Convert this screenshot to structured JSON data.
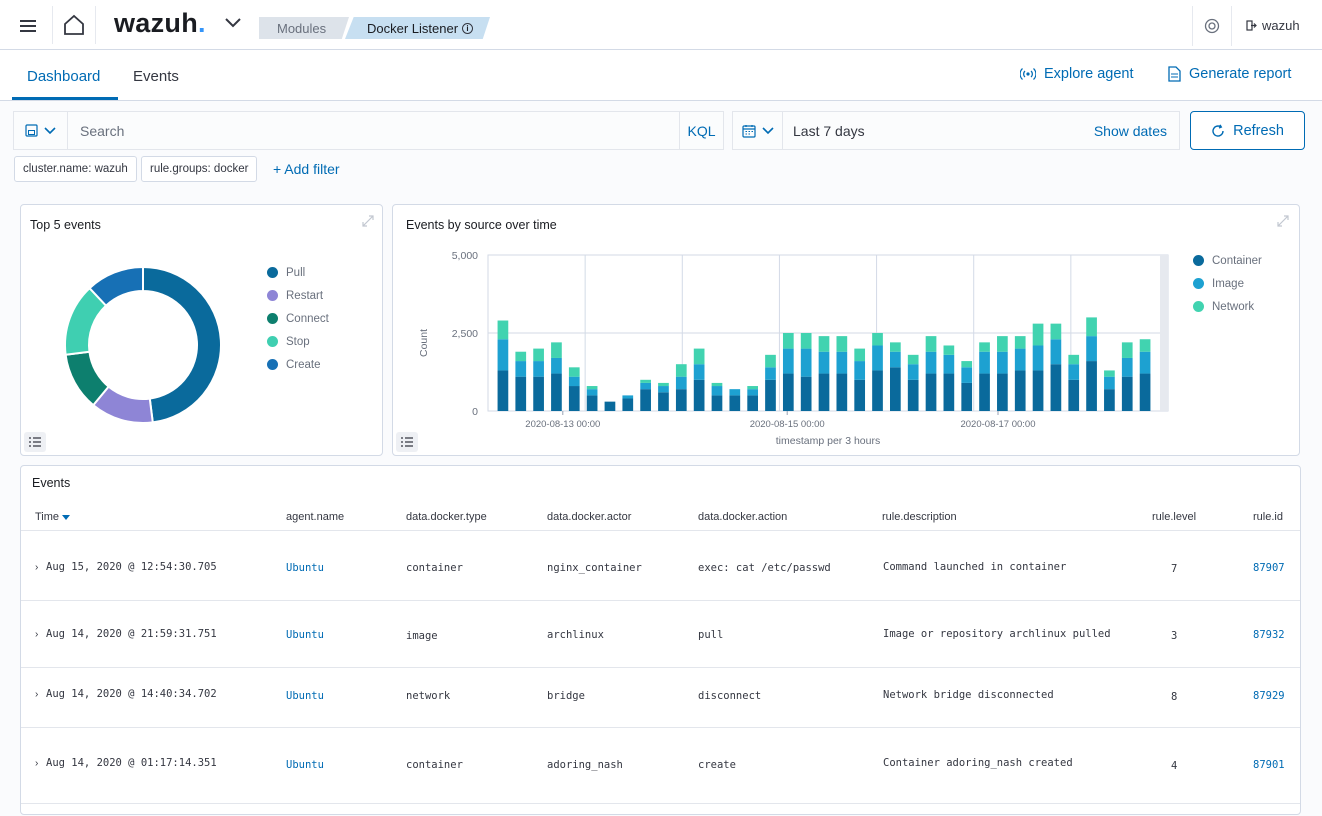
{
  "header": {
    "logo_text": "wazuh",
    "logo_dot": ".",
    "breadcrumb": [
      "Modules",
      "Docker Listener"
    ],
    "user": "wazuh",
    "icons": [
      "menu-icon",
      "home-icon",
      "chevron-down-icon",
      "info-icon",
      "help-icon",
      "logout-icon"
    ]
  },
  "tabs": [
    {
      "label": "Dashboard",
      "active": true
    },
    {
      "label": "Events",
      "active": false
    }
  ],
  "actions": {
    "explore_agent": "Explore agent",
    "generate_report": "Generate report"
  },
  "search": {
    "placeholder": "Search",
    "language": "KQL",
    "date_range": "Last 7 days",
    "show_dates": "Show dates",
    "refresh": "Refresh"
  },
  "filters": [
    "cluster.name: wazuh",
    "rule.groups: docker"
  ],
  "add_filter": "+ Add filter",
  "top5": {
    "title": "Top 5 events",
    "legend": [
      "Pull",
      "Restart",
      "Connect",
      "Stop",
      "Create"
    ],
    "colors": [
      "#0a6a9c",
      "#8e85d6",
      "#0d7f6e",
      "#3fcfb1",
      "#1770b5"
    ]
  },
  "timeline": {
    "title": "Events by source over time",
    "legend": [
      "Container",
      "Image",
      "Network"
    ],
    "colors": [
      "#0a6a9c",
      "#1da1d1",
      "#41d3b0"
    ],
    "ylabel": "Count",
    "xlabel": "timestamp per 3 hours",
    "y_ticks": [
      "5,000",
      "2,500",
      "0"
    ],
    "x_ticks": [
      "2020-08-13 00:00",
      "2020-08-15 00:00",
      "2020-08-17 00:00"
    ]
  },
  "chart_data": [
    {
      "type": "pie",
      "title": "Top 5 events",
      "labels": [
        "Pull",
        "Restart",
        "Connect",
        "Stop",
        "Create"
      ],
      "values": [
        48,
        13,
        12,
        15,
        12
      ]
    },
    {
      "type": "bar",
      "stacked": true,
      "title": "Events by source over time",
      "xlabel": "timestamp per 3 hours",
      "ylabel": "Count",
      "ylim": [
        0,
        5000
      ],
      "grid": true,
      "legend": "right",
      "x_ticks": [
        "2020-08-13 00:00",
        "2020-08-15 00:00",
        "2020-08-17 00:00"
      ],
      "series": [
        {
          "name": "Container",
          "values": [
            1300,
            1100,
            1100,
            1200,
            800,
            500,
            300,
            400,
            700,
            600,
            700,
            1000,
            500,
            500,
            500,
            1000,
            1200,
            1100,
            1200,
            1200,
            1000,
            1300,
            1400,
            1000,
            1200,
            1200,
            900,
            1200,
            1200,
            1300,
            1300,
            1500,
            1000,
            1600,
            700,
            1100,
            1200
          ]
        },
        {
          "name": "Image",
          "values": [
            1000,
            500,
            500,
            500,
            300,
            200,
            0,
            100,
            200,
            200,
            400,
            500,
            300,
            200,
            200,
            400,
            800,
            900,
            700,
            700,
            600,
            800,
            500,
            500,
            700,
            600,
            500,
            700,
            700,
            700,
            800,
            800,
            500,
            800,
            400,
            600,
            700
          ]
        },
        {
          "name": "Network",
          "values": [
            600,
            300,
            400,
            500,
            300,
            100,
            0,
            0,
            100,
            100,
            400,
            500,
            100,
            0,
            100,
            400,
            500,
            500,
            500,
            500,
            400,
            400,
            300,
            300,
            500,
            300,
            200,
            300,
            500,
            400,
            700,
            500,
            300,
            600,
            200,
            500,
            400
          ]
        }
      ]
    }
  ],
  "events": {
    "title": "Events",
    "columns": [
      "Time",
      "agent.name",
      "data.docker.type",
      "data.docker.actor",
      "data.docker.action",
      "rule.description",
      "rule.level",
      "rule.id"
    ],
    "rows": [
      {
        "time": "Aug 15, 2020 @ 12:54:30.705",
        "agent": "Ubuntu",
        "type": "container",
        "actor": "nginx_container",
        "action": "exec: cat /etc/passwd",
        "desc": "Command launched in container",
        "level": "7",
        "id": "87907"
      },
      {
        "time": "Aug 14, 2020 @ 21:59:31.751",
        "agent": "Ubuntu",
        "type": "image",
        "actor": "archlinux",
        "action": "pull",
        "desc": "Image or repository archlinux pulled",
        "level": "3",
        "id": "87932"
      },
      {
        "time": "Aug 14, 2020 @ 14:40:34.702",
        "agent": "Ubuntu",
        "type": "network",
        "actor": "bridge",
        "action": "disconnect",
        "desc": "Network bridge disconnected",
        "level": "8",
        "id": "87929"
      },
      {
        "time": "Aug 14, 2020 @ 01:17:14.351",
        "agent": "Ubuntu",
        "type": "container",
        "actor": "adoring_nash",
        "action": "create",
        "desc": "Container adoring_nash created",
        "level": "4",
        "id": "87901"
      }
    ]
  }
}
